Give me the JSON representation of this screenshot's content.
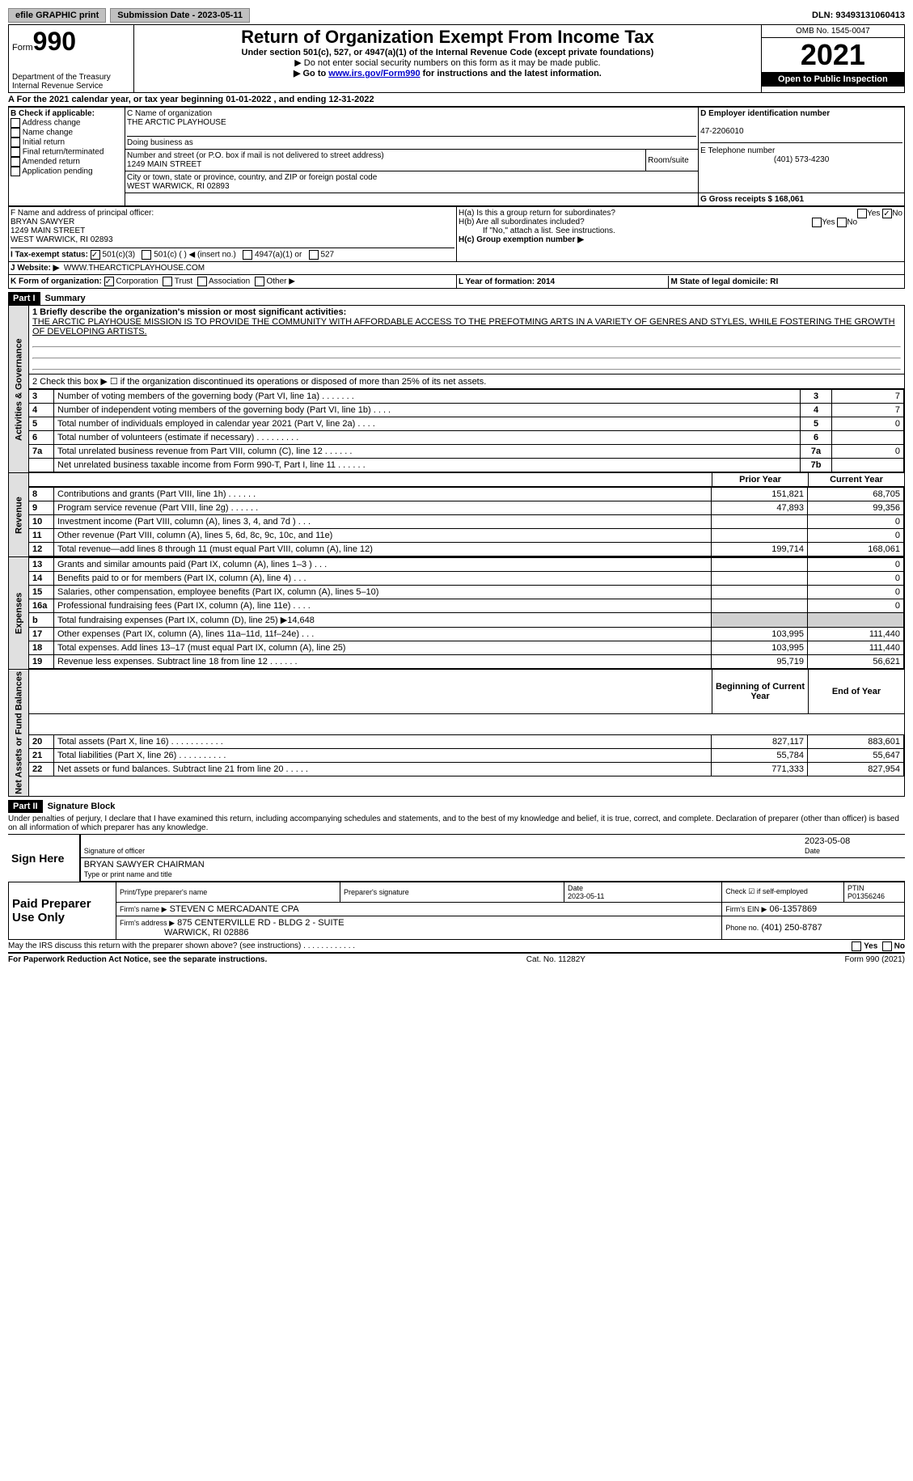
{
  "topbar": {
    "efile": "efile GRAPHIC print",
    "submission_label": "Submission Date - 2023-05-11",
    "dln_label": "DLN: 93493131060413"
  },
  "header": {
    "form_label": "Form",
    "form_number": "990",
    "dept_label": "Department of the Treasury Internal Revenue Service",
    "title": "Return of Organization Exempt From Income Tax",
    "subtitle": "Under section 501(c), 527, or 4947(a)(1) of the Internal Revenue Code (except private foundations)",
    "note1": "▶ Do not enter social security numbers on this form as it may be made public.",
    "note2_pre": "▶ Go to ",
    "note2_link": "www.irs.gov/Form990",
    "note2_post": " for instructions and the latest information.",
    "omb": "OMB No. 1545-0047",
    "year": "2021",
    "open_public": "Open to Public Inspection"
  },
  "line_a": "A For the 2021 calendar year, or tax year beginning 01-01-2022   , and ending 12-31-2022",
  "section_b": {
    "label": "B Check if applicable:",
    "items": [
      "Address change",
      "Name change",
      "Initial return",
      "Final return/terminated",
      "Amended return",
      "Application pending"
    ],
    "c_name_label": "C Name of organization",
    "org_name": "THE ARCTIC PLAYHOUSE",
    "dba_label": "Doing business as",
    "street_label": "Number and street (or P.O. box if mail is not delivered to street address)",
    "street": "1249 MAIN STREET",
    "room_label": "Room/suite",
    "city_label": "City or town, state or province, country, and ZIP or foreign postal code",
    "city": "WEST WARWICK, RI  02893",
    "d_ein_label": "D Employer identification number",
    "ein": "47-2206010",
    "e_phone_label": "E Telephone number",
    "phone": "(401) 573-4230",
    "g_gross_label": "G Gross receipts $ 168,061",
    "f_label": "F  Name and address of principal officer:",
    "officer_name": "BRYAN SAWYER",
    "officer_addr1": "1249 MAIN STREET",
    "officer_addr2": "WEST WARWICK, RI  02893",
    "ha_label": "H(a)  Is this a group return for subordinates?",
    "hb_label": "H(b)  Are all subordinates included?",
    "hb_note": "If \"No,\" attach a list. See instructions.",
    "hc_label": "H(c)  Group exemption number ▶",
    "yes": "Yes",
    "no": "No",
    "i_label": "I   Tax-exempt status:",
    "i_opts": [
      "501(c)(3)",
      "501(c) (  ) ◀ (insert no.)",
      "4947(a)(1) or",
      "527"
    ],
    "j_label": "J   Website: ▶",
    "website": "WWW.THEARCTICPLAYHOUSE.COM",
    "k_label": "K Form of organization:",
    "k_opts": [
      "Corporation",
      "Trust",
      "Association",
      "Other ▶"
    ],
    "l_label": "L Year of formation: 2014",
    "m_label": "M State of legal domicile: RI"
  },
  "part1": {
    "header": "Part I",
    "title": "Summary",
    "side_gov": "Activities & Governance",
    "side_rev": "Revenue",
    "side_exp": "Expenses",
    "side_net": "Net Assets or Fund Balances",
    "line1_label": "1  Briefly describe the organization's mission or most significant activities:",
    "mission": "THE ARCTIC PLAYHOUSE MISSION IS TO PROVIDE THE COMMUNITY WITH AFFORDABLE ACCESS TO THE PREFOTMING ARTS IN A VARIETY OF GENRES AND STYLES, WHILE FOSTERING THE GROWTH OF DEVELOPING ARTISTS.",
    "line2": "2   Check this box ▶ ☐  if the organization discontinued its operations or disposed of more than 25% of its net assets.",
    "gov_rows": [
      {
        "n": "3",
        "label": "Number of voting members of the governing body (Part VI, line 1a)  .   .   .   .   .   .   .",
        "box": "3",
        "val": "7"
      },
      {
        "n": "4",
        "label": "Number of independent voting members of the governing body (Part VI, line 1b)   .   .   .   .",
        "box": "4",
        "val": "7"
      },
      {
        "n": "5",
        "label": "Total number of individuals employed in calendar year 2021 (Part V, line 2a)   .   .   .   .",
        "box": "5",
        "val": "0"
      },
      {
        "n": "6",
        "label": "Total number of volunteers (estimate if necessary)   .   .   .   .   .   .   .   .   .",
        "box": "6",
        "val": ""
      },
      {
        "n": "7a",
        "label": "Total unrelated business revenue from Part VIII, column (C), line 12   .   .   .   .   .   .",
        "box": "7a",
        "val": "0"
      },
      {
        "n": "",
        "label": "Net unrelated business taxable income from Form 990-T, Part I, line 11   .   .   .   .   .   .",
        "box": "7b",
        "val": ""
      }
    ],
    "col_prior": "Prior Year",
    "col_current": "Current Year",
    "rev_rows": [
      {
        "n": "8",
        "label": "Contributions and grants (Part VIII, line 1h)   .   .   .   .   .   .",
        "py": "151,821",
        "cy": "68,705"
      },
      {
        "n": "9",
        "label": "Program service revenue (Part VIII, line 2g)   .   .   .   .   .   .",
        "py": "47,893",
        "cy": "99,356"
      },
      {
        "n": "10",
        "label": "Investment income (Part VIII, column (A), lines 3, 4, and 7d )   .   .   .",
        "py": "",
        "cy": "0"
      },
      {
        "n": "11",
        "label": "Other revenue (Part VIII, column (A), lines 5, 6d, 8c, 9c, 10c, and 11e)",
        "py": "",
        "cy": "0"
      },
      {
        "n": "12",
        "label": "Total revenue—add lines 8 through 11 (must equal Part VIII, column (A), line 12)",
        "py": "199,714",
        "cy": "168,061"
      }
    ],
    "exp_rows": [
      {
        "n": "13",
        "label": "Grants and similar amounts paid (Part IX, column (A), lines 1–3 )   .   .   .",
        "py": "",
        "cy": "0"
      },
      {
        "n": "14",
        "label": "Benefits paid to or for members (Part IX, column (A), line 4)   .   .   .",
        "py": "",
        "cy": "0"
      },
      {
        "n": "15",
        "label": "Salaries, other compensation, employee benefits (Part IX, column (A), lines 5–10)",
        "py": "",
        "cy": "0"
      },
      {
        "n": "16a",
        "label": "Professional fundraising fees (Part IX, column (A), line 11e)   .   .   .   .",
        "py": "",
        "cy": "0"
      },
      {
        "n": "b",
        "label": "Total fundraising expenses (Part IX, column (D), line 25) ▶14,648",
        "py": "GRAY",
        "cy": "GRAY"
      },
      {
        "n": "17",
        "label": "Other expenses (Part IX, column (A), lines 11a–11d, 11f–24e)   .   .   .",
        "py": "103,995",
        "cy": "111,440"
      },
      {
        "n": "18",
        "label": "Total expenses. Add lines 13–17 (must equal Part IX, column (A), line 25)",
        "py": "103,995",
        "cy": "111,440"
      },
      {
        "n": "19",
        "label": "Revenue less expenses. Subtract line 18 from line 12   .   .   .   .   .   .",
        "py": "95,719",
        "cy": "56,621"
      }
    ],
    "col_begin": "Beginning of Current Year",
    "col_end": "End of Year",
    "net_rows": [
      {
        "n": "20",
        "label": "Total assets (Part X, line 16)   .   .   .   .   .   .   .   .   .   .   .",
        "py": "827,117",
        "cy": "883,601"
      },
      {
        "n": "21",
        "label": "Total liabilities (Part X, line 26)   .   .   .   .   .   .   .   .   .   .",
        "py": "55,784",
        "cy": "55,647"
      },
      {
        "n": "22",
        "label": "Net assets or fund balances. Subtract line 21 from line 20   .   .   .   .   .",
        "py": "771,333",
        "cy": "827,954"
      }
    ]
  },
  "part2": {
    "header": "Part II",
    "title": "Signature Block",
    "declaration": "Under penalties of perjury, I declare that I have examined this return, including accompanying schedules and statements, and to the best of my knowledge and belief, it is true, correct, and complete. Declaration of preparer (other than officer) is based on all information of which preparer has any knowledge.",
    "sign_here": "Sign Here",
    "sig_officer": "Signature of officer",
    "sig_date": "2023-05-08",
    "date_label": "Date",
    "officer_name": "BRYAN SAWYER  CHAIRMAN",
    "name_title_label": "Type or print name and title",
    "paid_preparer": "Paid Preparer Use Only",
    "print_name_label": "Print/Type preparer's name",
    "prep_sig_label": "Preparer's signature",
    "prep_date_label": "Date",
    "prep_date": "2023-05-11",
    "check_self": "Check ☑ if self-employed",
    "ptin_label": "PTIN",
    "ptin": "P01356246",
    "firm_name_label": "Firm's name    ▶",
    "firm_name": "STEVEN C MERCADANTE CPA",
    "firm_ein_label": "Firm's EIN ▶",
    "firm_ein": "06-1357869",
    "firm_addr_label": "Firm's address ▶",
    "firm_addr": "875 CENTERVILLE RD - BLDG 2 - SUITE",
    "firm_addr2": "WARWICK, RI  02886",
    "firm_phone_label": "Phone no.",
    "firm_phone": "(401) 250-8787",
    "discuss": "May the IRS discuss this return with the preparer shown above? (see instructions)   .   .   .   .   .   .   .   .   .   .   .   .",
    "paperwork": "For Paperwork Reduction Act Notice, see the separate instructions.",
    "cat": "Cat. No. 11282Y",
    "footer_form": "Form 990 (2021)"
  }
}
